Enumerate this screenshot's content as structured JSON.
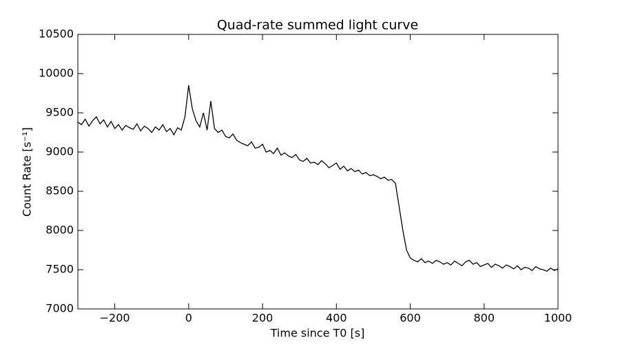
{
  "chart_data": {
    "type": "line",
    "title": "Quad-rate summed light curve",
    "xlabel": "Time since T0 [s]",
    "ylabel": "Count Rate [s⁻¹]",
    "x": [
      -300,
      -290,
      -280,
      -270,
      -260,
      -250,
      -240,
      -230,
      -220,
      -210,
      -200,
      -190,
      -180,
      -170,
      -160,
      -150,
      -140,
      -130,
      -120,
      -110,
      -100,
      -90,
      -80,
      -70,
      -60,
      -50,
      -40,
      -30,
      -20,
      -10,
      0,
      10,
      20,
      30,
      40,
      50,
      60,
      70,
      80,
      90,
      100,
      110,
      120,
      130,
      140,
      150,
      160,
      170,
      180,
      190,
      200,
      210,
      220,
      230,
      240,
      250,
      260,
      270,
      280,
      290,
      300,
      310,
      320,
      330,
      340,
      350,
      360,
      370,
      380,
      390,
      400,
      410,
      420,
      430,
      440,
      450,
      460,
      470,
      480,
      490,
      500,
      510,
      520,
      530,
      540,
      550,
      560,
      570,
      580,
      590,
      600,
      610,
      620,
      630,
      640,
      650,
      660,
      670,
      680,
      690,
      700,
      710,
      720,
      730,
      740,
      750,
      760,
      770,
      780,
      790,
      800,
      810,
      820,
      830,
      840,
      850,
      860,
      870,
      880,
      890,
      900,
      910,
      920,
      930,
      940,
      950,
      960,
      970,
      980,
      990,
      1000
    ],
    "series": [
      {
        "name": "Quad-rate",
        "color": "#000000",
        "values": [
          9380,
          9350,
          9420,
          9330,
          9400,
          9450,
          9360,
          9410,
          9320,
          9390,
          9300,
          9350,
          9280,
          9340,
          9310,
          9290,
          9360,
          9270,
          9330,
          9300,
          9250,
          9320,
          9280,
          9350,
          9260,
          9300,
          9220,
          9310,
          9280,
          9450,
          9850,
          9550,
          9400,
          9320,
          9500,
          9280,
          9650,
          9300,
          9250,
          9280,
          9200,
          9180,
          9230,
          9150,
          9120,
          9100,
          9080,
          9130,
          9050,
          9060,
          9100,
          9000,
          9020,
          8980,
          9050,
          8960,
          8990,
          8950,
          8930,
          8970,
          8900,
          8880,
          8920,
          8860,
          8870,
          8840,
          8890,
          8850,
          8800,
          8830,
          8860,
          8780,
          8820,
          8760,
          8790,
          8750,
          8770,
          8720,
          8740,
          8700,
          8710,
          8690,
          8660,
          8680,
          8640,
          8650,
          8600,
          8300,
          8000,
          7750,
          7650,
          7620,
          7600,
          7640,
          7590,
          7610,
          7580,
          7620,
          7600,
          7570,
          7590,
          7560,
          7610,
          7580,
          7550,
          7600,
          7620,
          7570,
          7590,
          7540,
          7560,
          7580,
          7530,
          7570,
          7550,
          7520,
          7560,
          7540,
          7510,
          7550,
          7500,
          7530,
          7520,
          7490,
          7540,
          7510,
          7500,
          7480,
          7520,
          7490,
          7510
        ]
      }
    ],
    "xlim": [
      -300,
      1000
    ],
    "xticks": [
      {
        "value": -200,
        "label": "−200"
      },
      0,
      200,
      400,
      600,
      800,
      1000
    ],
    "ylim": [
      7000,
      10500
    ],
    "yticks": [
      7000,
      7500,
      8000,
      8500,
      9000,
      9500,
      10000,
      10500
    ],
    "grid": false
  }
}
